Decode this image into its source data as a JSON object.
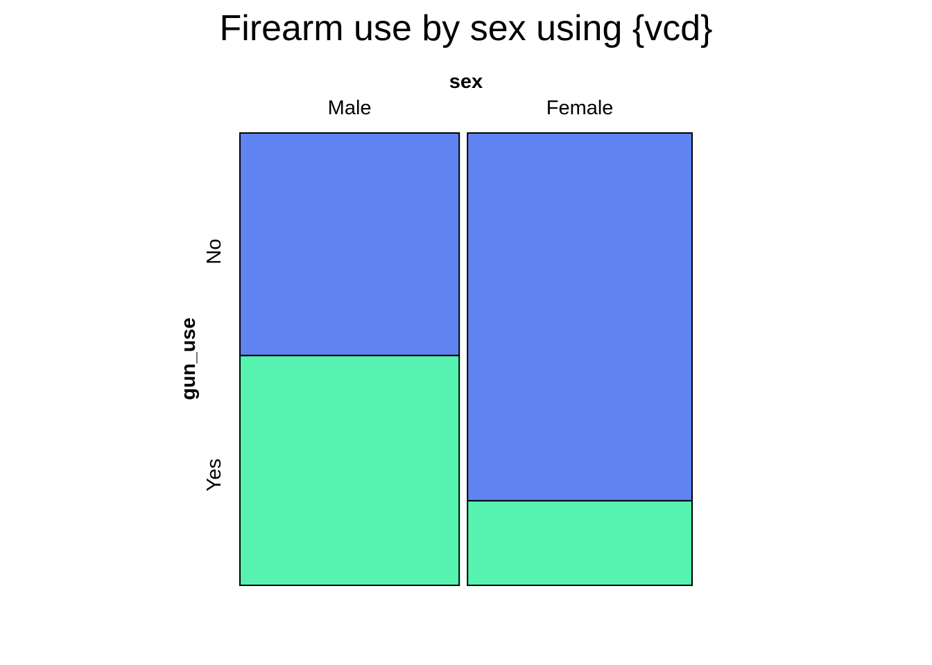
{
  "chart_data": {
    "type": "mosaic",
    "title": "Firearm use by sex using {vcd}",
    "column_variable": "sex",
    "row_variable": "gun_use",
    "columns": [
      {
        "name": "Male",
        "share": 0.494
      },
      {
        "name": "Female",
        "share": 0.506
      }
    ],
    "rows": [
      "No",
      "Yes"
    ],
    "row_label_midpoints": [
      0.262,
      0.756
    ],
    "proportions": {
      "Male": {
        "No": 0.492,
        "Yes": 0.508
      },
      "Female": {
        "No": 0.813,
        "Yes": 0.187
      }
    },
    "colors": {
      "No": "#5f84f2",
      "Yes": "#55f2b0"
    },
    "grid": false,
    "legend": "none"
  }
}
